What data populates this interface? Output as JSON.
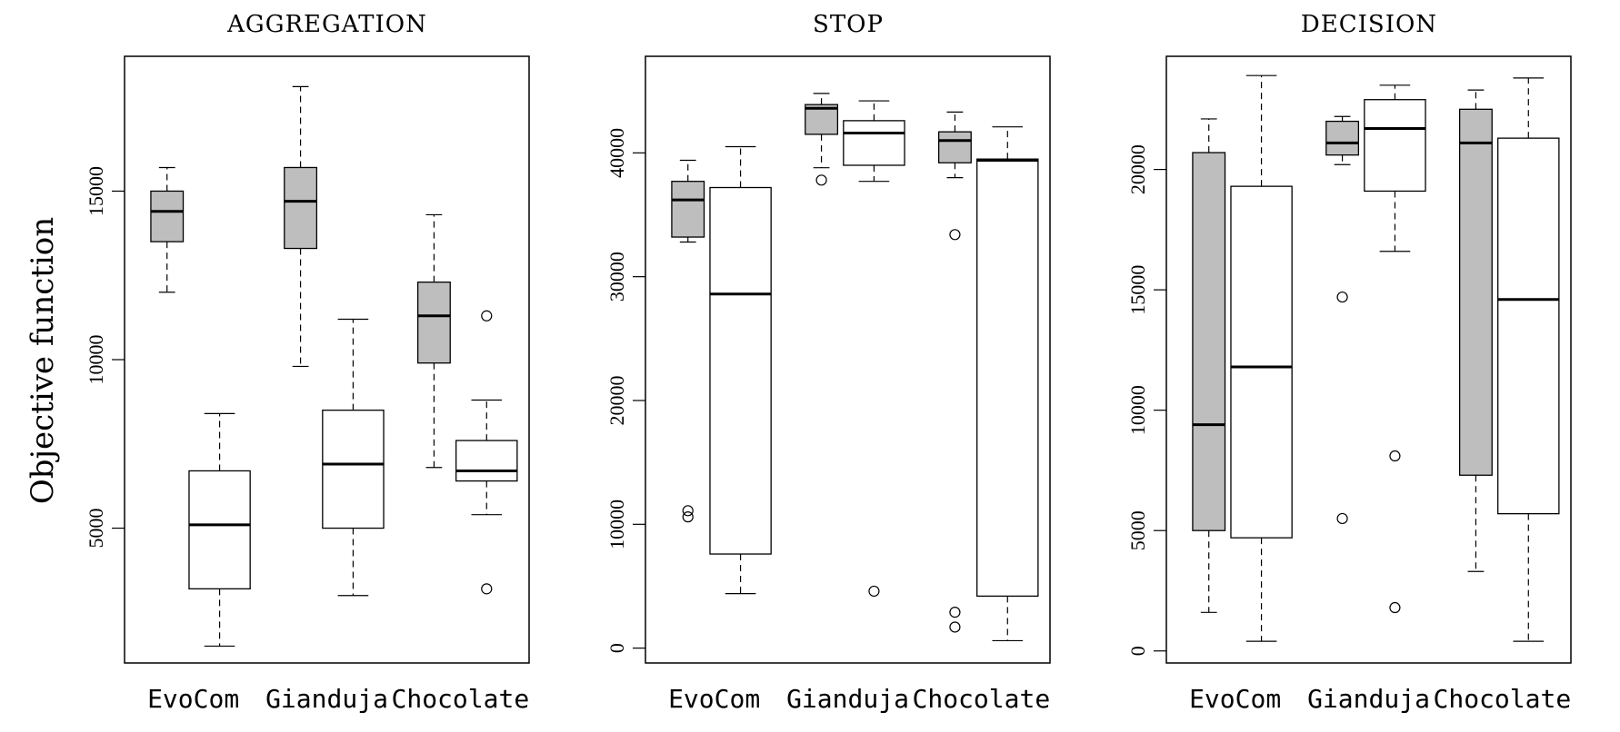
{
  "chart_data": [
    {
      "type": "boxplot",
      "title": "AGGREGATION",
      "ylabel": "Objective function",
      "categories": [
        "EvoCom",
        "Gianduja",
        "Chocolate"
      ],
      "ylim": [
        1000,
        19000
      ],
      "yticks": [
        5000,
        10000,
        15000
      ],
      "boxes": [
        {
          "category": "EvoCom",
          "fill": "gray",
          "whisker_low": 12000,
          "q1": 13500,
          "median": 14400,
          "q3": 15000,
          "whisker_high": 15700,
          "outliers": []
        },
        {
          "category": "EvoCom",
          "fill": "white",
          "whisker_low": 1500,
          "q1": 3200,
          "median": 5100,
          "q3": 6700,
          "whisker_high": 8400,
          "outliers": []
        },
        {
          "category": "Gianduja",
          "fill": "gray",
          "whisker_low": 9800,
          "q1": 13300,
          "median": 14700,
          "q3": 15700,
          "whisker_high": 18100,
          "outliers": []
        },
        {
          "category": "Gianduja",
          "fill": "white",
          "whisker_low": 3000,
          "q1": 5000,
          "median": 6900,
          "q3": 8500,
          "whisker_high": 11200,
          "outliers": []
        },
        {
          "category": "Chocolate",
          "fill": "gray",
          "whisker_low": 6800,
          "q1": 9900,
          "median": 11300,
          "q3": 12300,
          "whisker_high": 14300,
          "outliers": []
        },
        {
          "category": "Chocolate",
          "fill": "white",
          "whisker_low": 5400,
          "q1": 6400,
          "median": 6700,
          "q3": 7600,
          "whisker_high": 8800,
          "outliers": [
            11300,
            3200
          ]
        }
      ]
    },
    {
      "type": "boxplot",
      "title": "STOP",
      "ylabel": "",
      "categories": [
        "EvoCom",
        "Gianduja",
        "Chocolate"
      ],
      "ylim": [
        -1200,
        47800
      ],
      "yticks": [
        0,
        10000,
        20000,
        30000,
        40000
      ],
      "boxes": [
        {
          "category": "EvoCom",
          "fill": "gray",
          "whisker_low": 32800,
          "q1": 33200,
          "median": 36200,
          "q3": 37700,
          "whisker_high": 39400,
          "outliers": [
            11100,
            10600
          ]
        },
        {
          "category": "EvoCom",
          "fill": "white",
          "whisker_low": 4400,
          "q1": 7600,
          "median": 28600,
          "q3": 37200,
          "whisker_high": 40500,
          "outliers": []
        },
        {
          "category": "Gianduja",
          "fill": "gray",
          "whisker_low": 38800,
          "q1": 41500,
          "median": 43600,
          "q3": 43900,
          "whisker_high": 44800,
          "outliers": [
            37800
          ]
        },
        {
          "category": "Gianduja",
          "fill": "white",
          "whisker_low": 37700,
          "q1": 39000,
          "median": 41600,
          "q3": 42600,
          "whisker_high": 44200,
          "outliers": [
            4600
          ]
        },
        {
          "category": "Chocolate",
          "fill": "gray",
          "whisker_low": 38000,
          "q1": 39200,
          "median": 41000,
          "q3": 41700,
          "whisker_high": 43300,
          "outliers": [
            33400,
            2900,
            1700
          ]
        },
        {
          "category": "Chocolate",
          "fill": "white",
          "whisker_low": 600,
          "q1": 4200,
          "median": 39400,
          "q3": 39500,
          "whisker_high": 42100,
          "outliers": []
        }
      ]
    },
    {
      "type": "boxplot",
      "title": "DECISION",
      "ylabel": "",
      "categories": [
        "EvoCom",
        "Gianduja",
        "Chocolate"
      ],
      "ylim": [
        -500,
        24700
      ],
      "yticks": [
        0,
        5000,
        10000,
        15000,
        20000
      ],
      "boxes": [
        {
          "category": "EvoCom",
          "fill": "gray",
          "whisker_low": 1600,
          "q1": 5000,
          "median": 9400,
          "q3": 20700,
          "whisker_high": 22100,
          "outliers": []
        },
        {
          "category": "EvoCom",
          "fill": "white",
          "whisker_low": 400,
          "q1": 4700,
          "median": 11800,
          "q3": 19300,
          "whisker_high": 23900,
          "outliers": []
        },
        {
          "category": "Gianduja",
          "fill": "gray",
          "whisker_low": 20200,
          "q1": 20600,
          "median": 21100,
          "q3": 22000,
          "whisker_high": 22200,
          "outliers": [
            14700,
            5500
          ]
        },
        {
          "category": "Gianduja",
          "fill": "white",
          "whisker_low": 16600,
          "q1": 19100,
          "median": 21700,
          "q3": 22900,
          "whisker_high": 23500,
          "outliers": [
            8100,
            1800
          ]
        },
        {
          "category": "Chocolate",
          "fill": "gray",
          "whisker_low": 3300,
          "q1": 7300,
          "median": 21100,
          "q3": 22500,
          "whisker_high": 23300,
          "outliers": []
        },
        {
          "category": "Chocolate",
          "fill": "white",
          "whisker_low": 400,
          "q1": 5700,
          "median": 14600,
          "q3": 21300,
          "whisker_high": 23800,
          "outliers": []
        }
      ]
    }
  ],
  "colors": {
    "gray_fill": "#bebebe",
    "white_fill": "#ffffff",
    "ink": "#000000"
  }
}
